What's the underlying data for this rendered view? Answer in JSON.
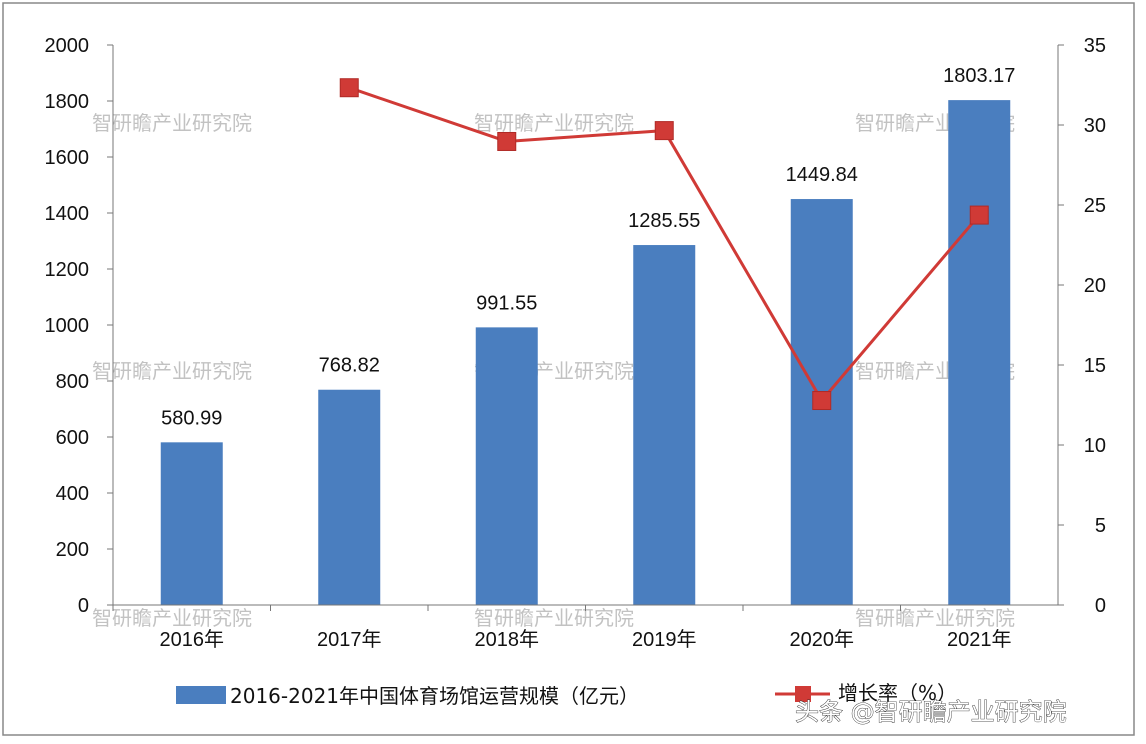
{
  "chart_data": {
    "type": "bar+line",
    "categories": [
      "2016年",
      "2017年",
      "2018年",
      "2019年",
      "2020年",
      "2021年"
    ],
    "series": [
      {
        "name": "2016-2021年中国体育场馆运营规模（亿元）",
        "type": "bar",
        "axis": "left",
        "values": [
          580.99,
          768.82,
          991.55,
          1285.55,
          1449.84,
          1803.17
        ],
        "labels": [
          "580.99",
          "768.82",
          "991.55",
          "1285.55",
          "1449.84",
          "1803.17"
        ],
        "color": "#4a7ebf"
      },
      {
        "name": "增长率（%）",
        "type": "line",
        "axis": "right",
        "values": [
          null,
          32.33,
          28.97,
          29.65,
          12.78,
          24.37
        ],
        "color": "#d03a36"
      }
    ],
    "y_left": {
      "range": [
        0,
        2000
      ],
      "ticks": [
        "0",
        "200",
        "400",
        "600",
        "800",
        "1000",
        "1200",
        "1400",
        "1600",
        "1800",
        "2000"
      ]
    },
    "y_right": {
      "range": [
        0,
        35
      ],
      "ticks": [
        "0",
        "5",
        "10",
        "15",
        "20",
        "25",
        "30",
        "35"
      ]
    },
    "grid": false,
    "legend": "bottom"
  },
  "watermark": "智研瞻产业研究院",
  "credit": "头条 @智研瞻产业研究院"
}
